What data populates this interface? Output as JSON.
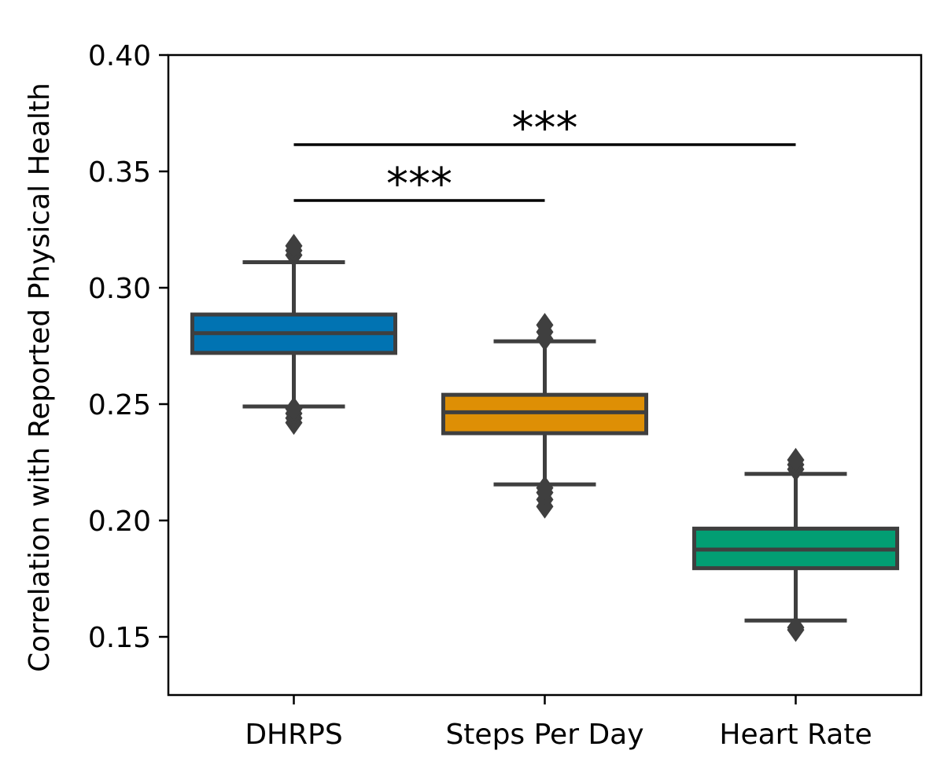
{
  "chart_data": {
    "type": "box",
    "title": "",
    "xlabel": "",
    "ylabel": "Correlation with Reported Physical Health",
    "ylim": [
      0.125,
      0.4
    ],
    "yticks": [
      0.4,
      0.35,
      0.3,
      0.25,
      0.2,
      0.15
    ],
    "ytick_labels": [
      "0.40",
      "0.35",
      "0.30",
      "0.25",
      "0.20",
      "0.15"
    ],
    "categories": [
      "DHRPS",
      "Steps Per Day",
      "Heart Rate"
    ],
    "boxes": [
      {
        "name": "DHRPS",
        "color": "#0173b2",
        "whisker_low": 0.249,
        "q1": 0.272,
        "median": 0.2805,
        "q3": 0.2885,
        "whisker_high": 0.311,
        "outliers": [
          0.242,
          0.244,
          0.246,
          0.248,
          0.314,
          0.316,
          0.318
        ]
      },
      {
        "name": "Steps Per Day",
        "color": "#de8f05",
        "whisker_low": 0.2155,
        "q1": 0.2375,
        "median": 0.2465,
        "q3": 0.254,
        "whisker_high": 0.277,
        "outliers": [
          0.206,
          0.209,
          0.212,
          0.214,
          0.278,
          0.281,
          0.284
        ]
      },
      {
        "name": "Heart Rate",
        "color": "#029e73",
        "whisker_low": 0.157,
        "q1": 0.1795,
        "median": 0.1875,
        "q3": 0.1965,
        "whisker_high": 0.22,
        "outliers": [
          0.153,
          0.154,
          0.222,
          0.224,
          0.226
        ]
      }
    ],
    "significance": [
      {
        "from": "DHRPS",
        "to": "Steps Per Day",
        "y": 0.3375,
        "label": "***"
      },
      {
        "from": "DHRPS",
        "to": "Heart Rate",
        "y": 0.3615,
        "label": "***"
      }
    ],
    "colors": {
      "box_edge": "#3f3f3f",
      "axis": "#000000"
    }
  }
}
